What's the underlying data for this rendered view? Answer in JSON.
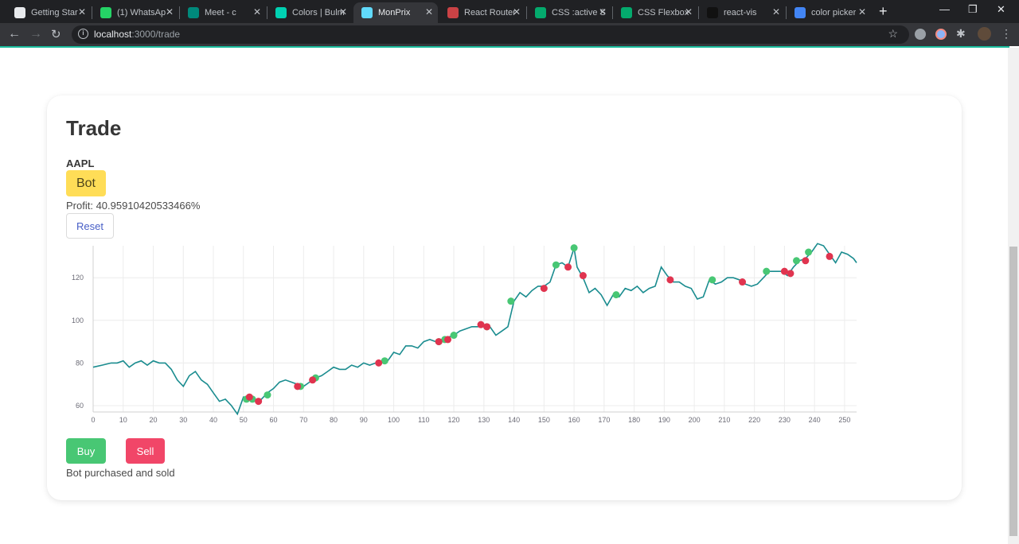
{
  "browser": {
    "tabs": [
      {
        "label": "Getting Star",
        "icon": "getting-started-icon",
        "color": "#e8eaed"
      },
      {
        "label": "(1) WhatsAp",
        "icon": "whatsapp-icon",
        "color": "#25d366"
      },
      {
        "label": "Meet - c",
        "icon": "google-meet-icon",
        "color": "#00897b"
      },
      {
        "label": "Colors | Bulm",
        "icon": "bulma-icon",
        "color": "#00d1b2"
      },
      {
        "label": "MonPrix",
        "icon": "react-icon",
        "color": "#61dafb",
        "active": true
      },
      {
        "label": "React Router",
        "icon": "react-router-icon",
        "color": "#ca4245"
      },
      {
        "label": "CSS :active S",
        "icon": "w3schools-icon",
        "color": "#04aa6d"
      },
      {
        "label": "CSS Flexbox",
        "icon": "w3schools-icon",
        "color": "#04aa6d"
      },
      {
        "label": "react-vis",
        "icon": "react-vis-icon",
        "color": "#111111"
      },
      {
        "label": "color picker",
        "icon": "google-icon",
        "color": "#4285f4"
      }
    ],
    "url_host": "localhost",
    "url_path": ":3000/trade"
  },
  "page": {
    "title": "Trade",
    "symbol": "AAPL",
    "bot_label": "Bot",
    "profit_text": "Profit: 40.95910420533466%",
    "reset_label": "Reset",
    "buy_label": "Buy",
    "sell_label": "Sell",
    "status_text": "Bot purchased and sold"
  },
  "colors": {
    "line": "#1a8c8f",
    "buy_marker": "#48c774",
    "sell_marker": "#e0344f",
    "bot_button": "#ffdd57",
    "buy_button": "#48c774",
    "sell_button": "#f14668",
    "accent": "#1abc9c"
  },
  "chart_data": {
    "type": "line",
    "title": "",
    "xlabel": "",
    "ylabel": "",
    "xlim": [
      0,
      254
    ],
    "ylim": [
      57,
      135
    ],
    "x_ticks": [
      0,
      10,
      20,
      30,
      40,
      50,
      60,
      70,
      80,
      90,
      100,
      110,
      120,
      130,
      140,
      150,
      160,
      170,
      180,
      190,
      200,
      210,
      220,
      230,
      240,
      250
    ],
    "y_ticks": [
      60,
      80,
      100,
      120
    ],
    "grid": true,
    "keyframes": [
      [
        0,
        78
      ],
      [
        3,
        79
      ],
      [
        6,
        80
      ],
      [
        8,
        80
      ],
      [
        10,
        81
      ],
      [
        12,
        78
      ],
      [
        14,
        80
      ],
      [
        16,
        81
      ],
      [
        18,
        79
      ],
      [
        20,
        81
      ],
      [
        22,
        80
      ],
      [
        24,
        80
      ],
      [
        26,
        77
      ],
      [
        28,
        72
      ],
      [
        30,
        69
      ],
      [
        32,
        74
      ],
      [
        34,
        76
      ],
      [
        36,
        72
      ],
      [
        38,
        70
      ],
      [
        40,
        66
      ],
      [
        42,
        62
      ],
      [
        44,
        63
      ],
      [
        46,
        60
      ],
      [
        48,
        56
      ],
      [
        50,
        64
      ],
      [
        52,
        63
      ],
      [
        54,
        62
      ],
      [
        56,
        63
      ],
      [
        58,
        66
      ],
      [
        60,
        68
      ],
      [
        62,
        71
      ],
      [
        64,
        72
      ],
      [
        66,
        71
      ],
      [
        68,
        70
      ],
      [
        70,
        69
      ],
      [
        72,
        71
      ],
      [
        74,
        73
      ],
      [
        76,
        74
      ],
      [
        78,
        76
      ],
      [
        80,
        78
      ],
      [
        82,
        77
      ],
      [
        84,
        77
      ],
      [
        86,
        79
      ],
      [
        88,
        78
      ],
      [
        90,
        80
      ],
      [
        92,
        79
      ],
      [
        94,
        80
      ],
      [
        96,
        80
      ],
      [
        98,
        81
      ],
      [
        100,
        85
      ],
      [
        102,
        84
      ],
      [
        104,
        88
      ],
      [
        106,
        88
      ],
      [
        108,
        87
      ],
      [
        110,
        90
      ],
      [
        112,
        91
      ],
      [
        114,
        90
      ],
      [
        116,
        91
      ],
      [
        118,
        92
      ],
      [
        120,
        93
      ],
      [
        122,
        95
      ],
      [
        124,
        96
      ],
      [
        126,
        97
      ],
      [
        128,
        97
      ],
      [
        130,
        98
      ],
      [
        132,
        97
      ],
      [
        134,
        93
      ],
      [
        136,
        95
      ],
      [
        138,
        97
      ],
      [
        140,
        109
      ],
      [
        142,
        113
      ],
      [
        144,
        111
      ],
      [
        146,
        114
      ],
      [
        148,
        116
      ],
      [
        150,
        116
      ],
      [
        152,
        118
      ],
      [
        154,
        126
      ],
      [
        156,
        127
      ],
      [
        158,
        125
      ],
      [
        160,
        134
      ],
      [
        161,
        125
      ],
      [
        163,
        120
      ],
      [
        165,
        113
      ],
      [
        167,
        115
      ],
      [
        169,
        112
      ],
      [
        171,
        107
      ],
      [
        173,
        112
      ],
      [
        175,
        111
      ],
      [
        177,
        115
      ],
      [
        179,
        114
      ],
      [
        181,
        116
      ],
      [
        183,
        113
      ],
      [
        185,
        115
      ],
      [
        187,
        116
      ],
      [
        189,
        125
      ],
      [
        191,
        121
      ],
      [
        193,
        118
      ],
      [
        195,
        118
      ],
      [
        197,
        116
      ],
      [
        199,
        115
      ],
      [
        201,
        110
      ],
      [
        203,
        111
      ],
      [
        205,
        119
      ],
      [
        207,
        117
      ],
      [
        209,
        118
      ],
      [
        211,
        120
      ],
      [
        213,
        120
      ],
      [
        215,
        119
      ],
      [
        217,
        117
      ],
      [
        219,
        116
      ],
      [
        221,
        117
      ],
      [
        223,
        120
      ],
      [
        225,
        123
      ],
      [
        227,
        123
      ],
      [
        229,
        123
      ],
      [
        231,
        121
      ],
      [
        233,
        125
      ],
      [
        235,
        128
      ],
      [
        237,
        129
      ],
      [
        239,
        132
      ],
      [
        241,
        136
      ],
      [
        243,
        135
      ],
      [
        245,
        131
      ],
      [
        247,
        127
      ],
      [
        249,
        132
      ],
      [
        251,
        131
      ],
      [
        253,
        129
      ],
      [
        254,
        127
      ]
    ],
    "buy_points": [
      [
        51,
        63
      ],
      [
        53,
        63
      ],
      [
        58,
        65
      ],
      [
        69,
        69
      ],
      [
        74,
        73
      ],
      [
        97,
        81
      ],
      [
        115,
        90
      ],
      [
        117,
        91
      ],
      [
        120,
        93
      ],
      [
        131,
        97
      ],
      [
        139,
        109
      ],
      [
        154,
        126
      ],
      [
        160,
        134
      ],
      [
        174,
        112
      ],
      [
        206,
        119
      ],
      [
        224,
        123
      ],
      [
        234,
        128
      ],
      [
        238,
        132
      ]
    ],
    "sell_points": [
      [
        52,
        64
      ],
      [
        55,
        62
      ],
      [
        68,
        69
      ],
      [
        73,
        72
      ],
      [
        95,
        80
      ],
      [
        115,
        90
      ],
      [
        118,
        91
      ],
      [
        129,
        98
      ],
      [
        131,
        97
      ],
      [
        150,
        115
      ],
      [
        158,
        125
      ],
      [
        163,
        121
      ],
      [
        192,
        119
      ],
      [
        216,
        118
      ],
      [
        230,
        123
      ],
      [
        232,
        122
      ],
      [
        237,
        128
      ],
      [
        245,
        130
      ]
    ]
  }
}
